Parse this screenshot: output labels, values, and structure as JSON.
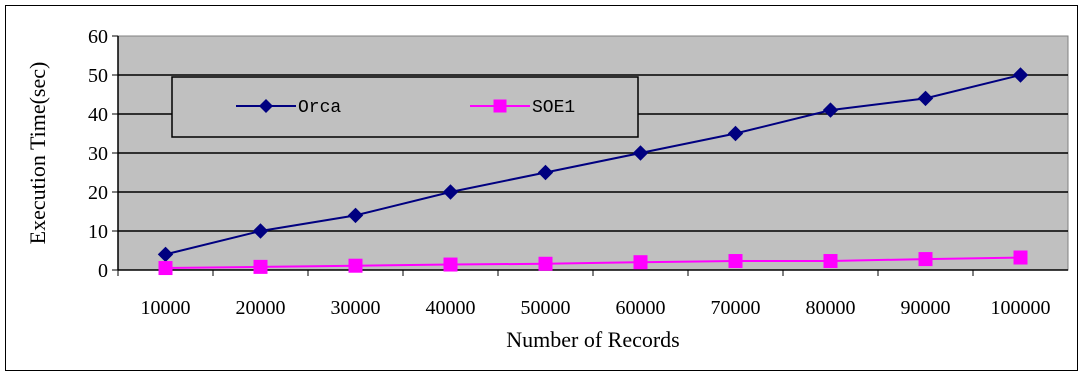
{
  "chart_data": {
    "type": "line",
    "title": "",
    "xlabel": "Number of Records",
    "ylabel": "Execution Time(sec)",
    "categories": [
      "10000",
      "20000",
      "30000",
      "40000",
      "50000",
      "60000",
      "70000",
      "80000",
      "90000",
      "100000"
    ],
    "ylim": [
      0,
      60
    ],
    "yticks": [
      "0",
      "10",
      "20",
      "30",
      "40",
      "50",
      "60"
    ],
    "grid": true,
    "legend_position": "top-left",
    "plot_background": "#C0C0C0",
    "series": [
      {
        "name": "Orca",
        "color": "#000080",
        "marker": "diamond",
        "values": [
          4,
          10,
          14,
          20,
          25,
          30,
          35,
          41,
          44,
          50
        ]
      },
      {
        "name": "SOE1",
        "color": "#FF00FF",
        "marker": "square",
        "values": [
          0.5,
          0.8,
          1.1,
          1.4,
          1.6,
          2.0,
          2.3,
          2.3,
          2.8,
          3.2
        ]
      }
    ]
  }
}
